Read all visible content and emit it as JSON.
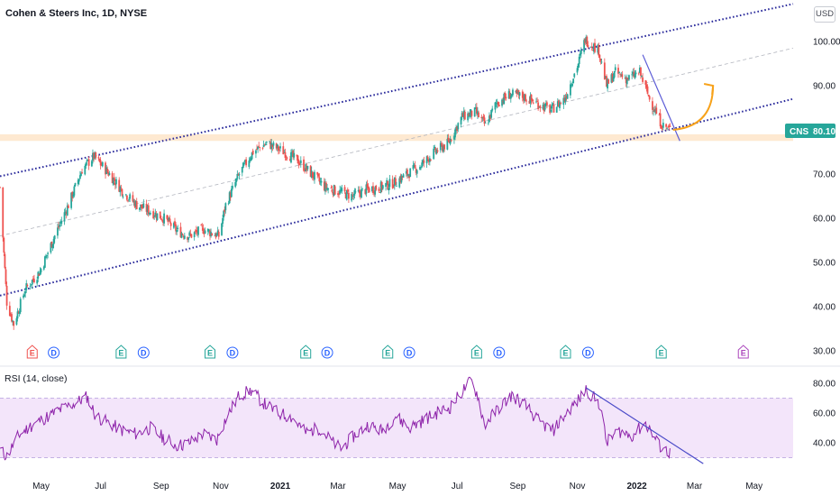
{
  "title": "Cohen & Steers Inc, 1D, NYSE",
  "currency_button": "USD",
  "rsi_title": "RSI (14, close)",
  "price_badge": {
    "symbol": "CNS",
    "value": "80.10",
    "color": "#26a69a"
  },
  "colors": {
    "up": "#26a69a",
    "down": "#ef5350",
    "channel": "#2b2b9c",
    "support_zone": "#fde2c2",
    "arrow": "#f7a21b",
    "rsi_line": "#8e24aa",
    "rsi_band": "#f3e5fa"
  },
  "chart_data": [
    {
      "type": "candlestick",
      "title": "Cohen & Steers Inc, 1D, NYSE",
      "ylim": [
        30,
        105
      ],
      "y_ticks": [
        "100.00",
        "90.00",
        "80.00",
        "70.00",
        "60.00",
        "50.00",
        "40.00",
        "30.00"
      ],
      "x_ticks": [
        "May",
        "Jul",
        "Sep",
        "Nov",
        "2021",
        "Mar",
        "May",
        "Jul",
        "Sep",
        "Nov",
        "2022",
        "Mar",
        "May"
      ],
      "x_range": [
        "2020-03-20",
        "2022-06-10"
      ],
      "grid": false,
      "last_price": 80.1,
      "close_path": [
        [
          "2020-03-20",
          67.0
        ],
        [
          "2020-03-24",
          52.0
        ],
        [
          "2020-03-27",
          41.0
        ],
        [
          "2020-04-03",
          36.0
        ],
        [
          "2020-04-15",
          44.0
        ],
        [
          "2020-04-30",
          48.0
        ],
        [
          "2020-05-15",
          56.0
        ],
        [
          "2020-05-29",
          63.0
        ],
        [
          "2020-06-12",
          71.0
        ],
        [
          "2020-06-24",
          74.0
        ],
        [
          "2020-07-10",
          70.0
        ],
        [
          "2020-07-24",
          66.0
        ],
        [
          "2020-08-07",
          63.0
        ],
        [
          "2020-08-21",
          61.5
        ],
        [
          "2020-09-04",
          60.0
        ],
        [
          "2020-09-18",
          57.0
        ],
        [
          "2020-09-30",
          56.0
        ],
        [
          "2020-10-14",
          57.5
        ],
        [
          "2020-10-30",
          56.0
        ],
        [
          "2020-11-06",
          63.0
        ],
        [
          "2020-11-20",
          70.0
        ],
        [
          "2020-12-04",
          75.0
        ],
        [
          "2020-12-18",
          77.0
        ],
        [
          "2021-01-05",
          75.0
        ],
        [
          "2021-01-19",
          73.0
        ],
        [
          "2021-02-02",
          70.0
        ],
        [
          "2021-02-16",
          67.0
        ],
        [
          "2021-03-02",
          66.0
        ],
        [
          "2021-03-16",
          65.0
        ],
        [
          "2021-03-30",
          66.5
        ],
        [
          "2021-04-13",
          67.0
        ],
        [
          "2021-04-27",
          68.0
        ],
        [
          "2021-05-11",
          70.0
        ],
        [
          "2021-05-25",
          72.0
        ],
        [
          "2021-06-08",
          75.0
        ],
        [
          "2021-06-22",
          77.0
        ],
        [
          "2021-07-06",
          83.0
        ],
        [
          "2021-07-20",
          84.0
        ],
        [
          "2021-07-30",
          81.0
        ],
        [
          "2021-08-10",
          86.0
        ],
        [
          "2021-08-24",
          88.0
        ],
        [
          "2021-09-07",
          87.5
        ],
        [
          "2021-09-21",
          86.0
        ],
        [
          "2021-10-05",
          84.5
        ],
        [
          "2021-10-19",
          87.0
        ],
        [
          "2021-11-02",
          95.0
        ],
        [
          "2021-11-09",
          100.5
        ],
        [
          "2021-11-23",
          98.0
        ],
        [
          "2021-12-01",
          90.0
        ],
        [
          "2021-12-10",
          93.0
        ],
        [
          "2021-12-22",
          91.5
        ],
        [
          "2022-01-04",
          93.0
        ],
        [
          "2022-01-14",
          87.0
        ],
        [
          "2022-01-27",
          81.0
        ],
        [
          "2022-02-04",
          80.1
        ]
      ],
      "trend_lines": {
        "channel_upper": [
          [
            "2020-03-20",
            69.5
          ],
          [
            "2022-06-10",
            108.5
          ]
        ],
        "channel_mid": [
          [
            "2020-03-20",
            56.0
          ],
          [
            "2022-06-10",
            98.5
          ]
        ],
        "channel_lower": [
          [
            "2020-03-20",
            42.5
          ],
          [
            "2022-06-10",
            87.0
          ]
        ],
        "down_trendline": [
          [
            "2022-01-07",
            97.0
          ],
          [
            "2022-02-14",
            77.5
          ]
        ],
        "support_zone": [
          77.5,
          79.0
        ],
        "projection_arrow": [
          [
            "2022-02-07",
            80.0
          ],
          [
            "2022-03-20",
            90.0
          ]
        ]
      },
      "events": [
        {
          "date": "2020-04-22",
          "label": "E",
          "kind": "earnings-missed"
        },
        {
          "date": "2020-05-14",
          "label": "D",
          "kind": "dividend"
        },
        {
          "date": "2020-07-22",
          "label": "E",
          "kind": "earnings"
        },
        {
          "date": "2020-08-14",
          "label": "D",
          "kind": "dividend"
        },
        {
          "date": "2020-10-21",
          "label": "E",
          "kind": "earnings"
        },
        {
          "date": "2020-11-13",
          "label": "D",
          "kind": "dividend"
        },
        {
          "date": "2021-01-27",
          "label": "E",
          "kind": "earnings"
        },
        {
          "date": "2021-02-18",
          "label": "D",
          "kind": "dividend"
        },
        {
          "date": "2021-04-21",
          "label": "E",
          "kind": "earnings"
        },
        {
          "date": "2021-05-13",
          "label": "D",
          "kind": "dividend"
        },
        {
          "date": "2021-07-21",
          "label": "E",
          "kind": "earnings"
        },
        {
          "date": "2021-08-13",
          "label": "D",
          "kind": "dividend"
        },
        {
          "date": "2021-10-20",
          "label": "E",
          "kind": "earnings"
        },
        {
          "date": "2021-11-12",
          "label": "D",
          "kind": "dividend"
        },
        {
          "date": "2022-01-26",
          "label": "E",
          "kind": "earnings"
        },
        {
          "date": "2022-04-20",
          "label": "E",
          "kind": "earnings-upcoming"
        }
      ]
    },
    {
      "type": "line",
      "title": "RSI (14, close)",
      "ylim": [
        27,
        86
      ],
      "y_ticks": [
        "80.00",
        "60.00",
        "40.00"
      ],
      "band": [
        30,
        70
      ],
      "series": [
        {
          "name": "RSI",
          "points": [
            [
              "2020-03-20",
              35
            ],
            [
              "2020-03-27",
              31
            ],
            [
              "2020-04-08",
              45
            ],
            [
              "2020-04-22",
              52
            ],
            [
              "2020-05-06",
              57
            ],
            [
              "2020-05-20",
              62
            ],
            [
              "2020-06-03",
              66
            ],
            [
              "2020-06-17",
              71
            ],
            [
              "2020-06-26",
              58
            ],
            [
              "2020-07-10",
              53
            ],
            [
              "2020-07-24",
              48
            ],
            [
              "2020-08-07",
              46
            ],
            [
              "2020-08-21",
              50
            ],
            [
              "2020-09-04",
              43
            ],
            [
              "2020-09-18",
              38
            ],
            [
              "2020-09-30",
              40
            ],
            [
              "2020-10-14",
              46
            ],
            [
              "2020-10-28",
              42
            ],
            [
              "2020-11-06",
              56
            ],
            [
              "2020-11-20",
              72
            ],
            [
              "2020-12-02",
              75
            ],
            [
              "2020-12-16",
              66
            ],
            [
              "2020-12-30",
              60
            ],
            [
              "2021-01-13",
              57
            ],
            [
              "2021-01-27",
              47
            ],
            [
              "2021-02-10",
              50
            ],
            [
              "2021-02-24",
              40
            ],
            [
              "2021-03-04",
              36
            ],
            [
              "2021-03-18",
              45
            ],
            [
              "2021-04-01",
              52
            ],
            [
              "2021-04-15",
              48
            ],
            [
              "2021-04-29",
              58
            ],
            [
              "2021-05-13",
              50
            ],
            [
              "2021-05-27",
              55
            ],
            [
              "2021-06-10",
              60
            ],
            [
              "2021-06-24",
              64
            ],
            [
              "2021-07-08",
              76
            ],
            [
              "2021-07-15",
              82
            ],
            [
              "2021-07-22",
              72
            ],
            [
              "2021-07-29",
              52
            ],
            [
              "2021-08-12",
              63
            ],
            [
              "2021-08-26",
              72
            ],
            [
              "2021-09-09",
              65
            ],
            [
              "2021-09-23",
              54
            ],
            [
              "2021-10-07",
              48
            ],
            [
              "2021-10-21",
              60
            ],
            [
              "2021-11-04",
              70
            ],
            [
              "2021-11-10",
              76
            ],
            [
              "2021-11-24",
              66
            ],
            [
              "2021-12-01",
              40
            ],
            [
              "2021-12-13",
              48
            ],
            [
              "2021-12-27",
              45
            ],
            [
              "2022-01-10",
              53
            ],
            [
              "2022-01-24",
              38
            ],
            [
              "2022-02-04",
              33
            ]
          ]
        }
      ],
      "trend_lines": {
        "rsi_down_trendline": [
          [
            "2021-11-10",
            77
          ],
          [
            "2022-03-10",
            26
          ]
        ]
      }
    }
  ]
}
